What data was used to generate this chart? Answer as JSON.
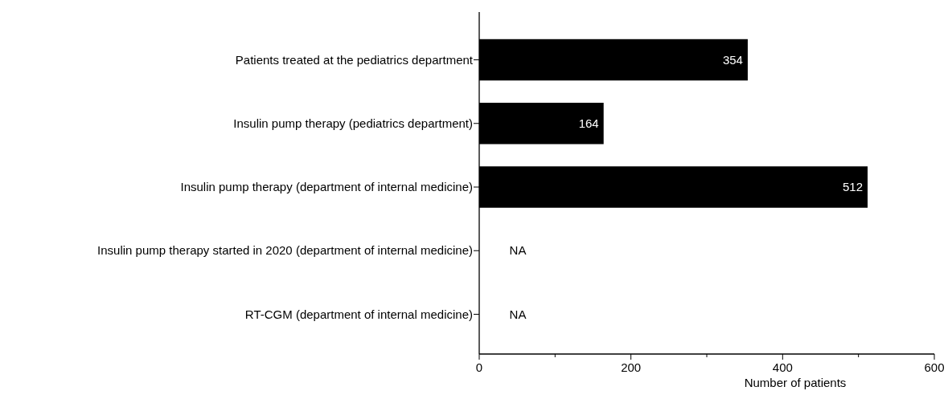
{
  "chart_data": {
    "type": "bar",
    "orientation": "horizontal",
    "xlabel": "Number of patients",
    "categories": [
      "Patients treated at the pediatrics department",
      "Insulin pump therapy (pediatrics department)",
      "Insulin pump therapy (department of internal medicine)",
      "Insulin pump therapy started in 2020 (department of internal medicine)",
      "RT-CGM (department of internal medicine)"
    ],
    "values": [
      354,
      164,
      512,
      null,
      null
    ],
    "value_labels": [
      "354",
      "164",
      "512",
      "NA",
      "NA"
    ],
    "color": "#000000",
    "xlim": [
      0,
      600
    ],
    "xticks": [
      0,
      {
        "value": 100,
        "label": null
      },
      200,
      {
        "value": 300,
        "label": null
      },
      400,
      {
        "value": 500,
        "label": null
      },
      600
    ],
    "grid": false
  }
}
